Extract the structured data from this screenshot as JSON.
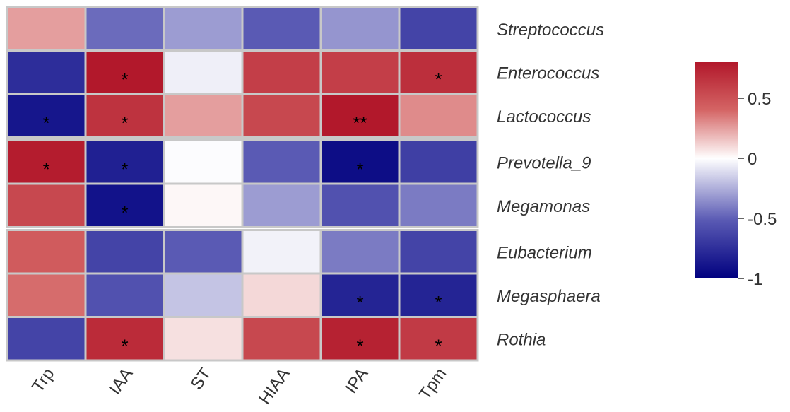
{
  "chart_data": {
    "type": "heatmap",
    "columns": [
      "Trp",
      "IAA",
      "ST",
      "HIAA",
      "IPA",
      "Tpm"
    ],
    "rows": [
      "Streptococcus",
      "Enterococcus",
      "Lactococcus",
      "Prevotella_9",
      "Megamonas",
      "Eubacterium",
      "Megasphaera",
      "Rothia"
    ],
    "row_groups": [
      3,
      2,
      3
    ],
    "values": [
      [
        0.25,
        -0.45,
        -0.3,
        -0.5,
        -0.32,
        -0.62
      ],
      [
        -0.75,
        0.8,
        -0.05,
        0.6,
        0.6,
        0.68
      ],
      [
        -0.88,
        0.66,
        0.25,
        0.55,
        0.82,
        0.3
      ],
      [
        0.78,
        -0.82,
        -0.01,
        -0.5,
        -0.93,
        -0.65
      ],
      [
        0.55,
        -0.9,
        0.02,
        -0.3,
        -0.55,
        -0.4
      ],
      [
        0.45,
        -0.62,
        -0.5,
        -0.04,
        -0.4,
        -0.62
      ],
      [
        0.38,
        -0.55,
        -0.18,
        0.1,
        -0.8,
        -0.8
      ],
      [
        -0.62,
        0.7,
        0.08,
        0.55,
        0.75,
        0.62
      ]
    ],
    "significance": [
      [
        "",
        "",
        "",
        "",
        "",
        ""
      ],
      [
        "",
        "*",
        "",
        "",
        "",
        "*"
      ],
      [
        "*",
        "*",
        "",
        "",
        "**",
        ""
      ],
      [
        "*",
        "*",
        "",
        "",
        "*",
        ""
      ],
      [
        "",
        "*",
        "",
        "",
        "",
        ""
      ],
      [
        "",
        "",
        "",
        "",
        "",
        ""
      ],
      [
        "",
        "",
        "",
        "",
        "*",
        "*"
      ],
      [
        "",
        "*",
        "",
        "",
        "*",
        "*"
      ]
    ],
    "colorbar": {
      "min": -1,
      "max": 0.8,
      "ticks": [
        0.5,
        0,
        -0.5,
        -1
      ],
      "tick_labels": [
        "0.5",
        "0",
        "-0.5",
        "-1"
      ],
      "colors": {
        "low": "#00007F",
        "mid": "#FFFFFF",
        "high": "#B2182B"
      }
    },
    "grid_color": "#C8C8C8"
  }
}
